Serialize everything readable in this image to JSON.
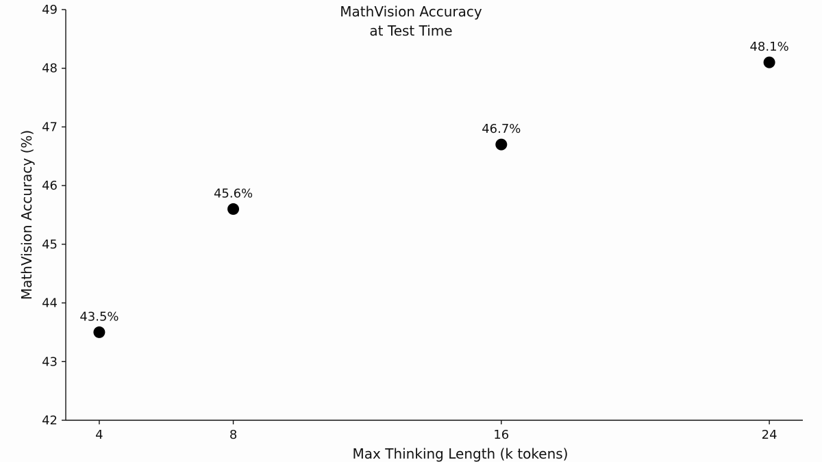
{
  "chart_data": {
    "type": "scatter",
    "title_lines": [
      "MathVision Accuracy",
      "at Test Time"
    ],
    "xlabel": "Max Thinking Length (k tokens)",
    "ylabel": "MathVision Accuracy (%)",
    "x": [
      4,
      8,
      16,
      24
    ],
    "y": [
      43.5,
      45.6,
      46.7,
      48.1
    ],
    "point_labels": [
      "43.5%",
      "45.6%",
      "46.7%",
      "48.1%"
    ],
    "xticks": [
      4,
      8,
      16,
      24
    ],
    "xtick_labels": [
      "4",
      "8",
      "16",
      "24"
    ],
    "yticks": [
      42,
      43,
      44,
      45,
      46,
      47,
      48,
      49
    ],
    "ytick_labels": [
      "42",
      "43",
      "44",
      "45",
      "46",
      "47",
      "48",
      "49"
    ],
    "xlim": [
      3,
      25
    ],
    "ylim": [
      42,
      49
    ],
    "grid": false,
    "legend": "none",
    "colors": {
      "marker": "#000000",
      "text": "#111111",
      "background": "#fdfdfd"
    }
  }
}
